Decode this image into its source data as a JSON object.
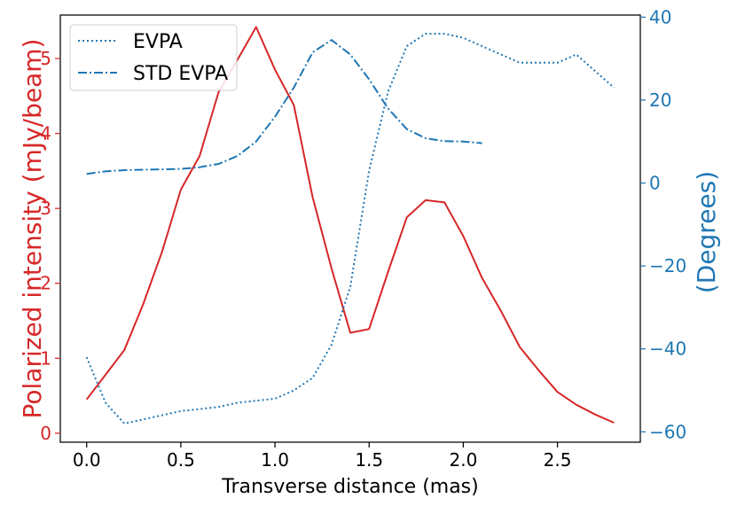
{
  "chart_data": {
    "type": "line",
    "xlabel": "Transverse distance (mas)",
    "ylabel_left": "Polarized intensity (mJy/beam)",
    "ylabel_right": "(Degrees)",
    "xlim": [
      -0.14,
      2.94
    ],
    "ylim_left": [
      -0.12,
      5.58
    ],
    "ylim_right": [
      -62.5,
      40.5
    ],
    "x_ticks": [
      0.0,
      0.5,
      1.0,
      1.5,
      2.0,
      2.5
    ],
    "x_tick_labels": [
      "0.0",
      "0.5",
      "1.0",
      "1.5",
      "2.0",
      "2.5"
    ],
    "left_ticks": [
      0,
      1,
      2,
      3,
      4,
      5
    ],
    "left_tick_labels": [
      "0",
      "1",
      "2",
      "3",
      "4",
      "5"
    ],
    "right_ticks": [
      40,
      20,
      0,
      -20,
      -40,
      -60
    ],
    "right_tick_labels": [
      "40",
      "20",
      "0",
      "−20",
      "−40",
      "−60"
    ],
    "grid": false,
    "legend_position": "top-left",
    "colors": {
      "left": "#d62728",
      "right": "#1f77b4",
      "axes": "#000000"
    },
    "series": [
      {
        "name": "",
        "axis": "left",
        "style": "solid",
        "color": "#d62728",
        "x": [
          0.0,
          0.1,
          0.2,
          0.3,
          0.4,
          0.5,
          0.6,
          0.7,
          0.8,
          0.9,
          1.0,
          1.1,
          1.2,
          1.3,
          1.4,
          1.5,
          1.6,
          1.7,
          1.8,
          1.9,
          2.0,
          2.1,
          2.2,
          2.3,
          2.4,
          2.5,
          2.6,
          2.7,
          2.8
        ],
        "y": [
          0.45,
          0.78,
          1.11,
          1.72,
          2.42,
          3.25,
          3.7,
          4.55,
          4.98,
          5.42,
          4.85,
          4.38,
          3.15,
          2.2,
          1.34,
          1.39,
          2.15,
          2.88,
          3.11,
          3.08,
          2.63,
          2.07,
          1.63,
          1.15,
          0.84,
          0.55,
          0.38,
          0.25,
          0.14
        ]
      },
      {
        "name": "EVPA",
        "axis": "right",
        "style": "dotted",
        "color": "#1f77b4",
        "x": [
          0.0,
          0.1,
          0.2,
          0.3,
          0.4,
          0.5,
          0.6,
          0.7,
          0.8,
          0.9,
          1.0,
          1.1,
          1.2,
          1.3,
          1.4,
          1.5,
          1.6,
          1.7,
          1.8,
          1.9,
          2.0,
          2.1,
          2.2,
          2.3,
          2.4,
          2.5,
          2.6,
          2.7,
          2.8
        ],
        "y": [
          -42,
          -53,
          -58,
          -57,
          -56,
          -55,
          -54.5,
          -54,
          -53,
          -52.5,
          -52,
          -50,
          -47,
          -39,
          -25,
          3,
          22,
          33,
          36,
          36,
          35,
          33,
          31,
          29,
          29,
          29,
          31,
          27,
          23
        ]
      },
      {
        "name": "STD EVPA",
        "axis": "right",
        "style": "dashdot",
        "color": "#1f77b4",
        "x": [
          0.0,
          0.1,
          0.2,
          0.3,
          0.4,
          0.5,
          0.6,
          0.7,
          0.8,
          0.9,
          1.0,
          1.1,
          1.2,
          1.3,
          1.4,
          1.5,
          1.6,
          1.7,
          1.8,
          1.9,
          2.0,
          2.1
        ],
        "y": [
          2.2,
          2.8,
          3.1,
          3.2,
          3.3,
          3.4,
          3.8,
          4.6,
          6.5,
          10.0,
          16.0,
          23.0,
          31.5,
          34.5,
          31.0,
          25.0,
          18.0,
          13.0,
          10.8,
          10.1,
          10.0,
          9.6
        ]
      }
    ]
  }
}
